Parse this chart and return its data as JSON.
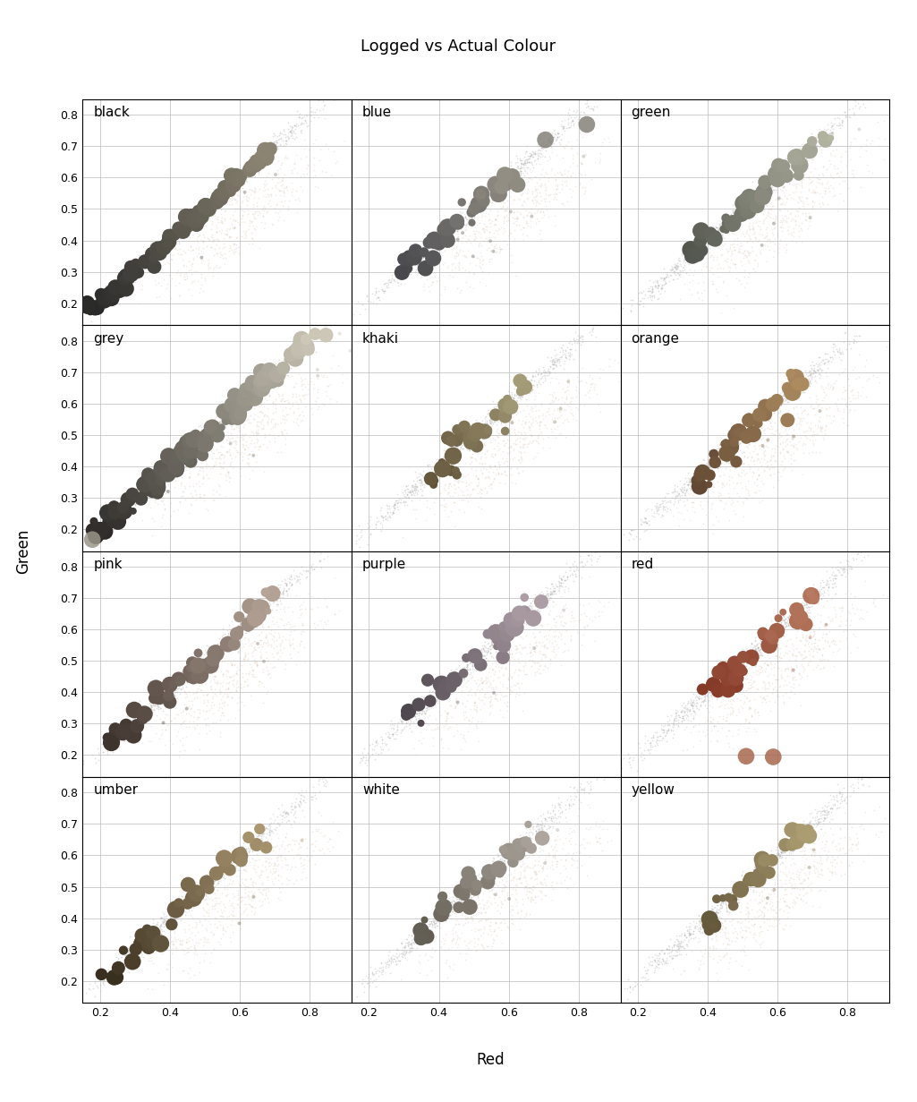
{
  "title": "Logged vs Actual Colour",
  "xlabel": "Red",
  "ylabel": "Green",
  "labels": [
    "black",
    "blue",
    "green",
    "grey",
    "khaki",
    "orange",
    "pink",
    "purple",
    "red",
    "umber",
    "white",
    "yellow"
  ],
  "xlim": [
    0.15,
    0.92
  ],
  "ylim": [
    0.13,
    0.85
  ],
  "xticks": [
    0.2,
    0.4,
    0.6,
    0.8
  ],
  "yticks": [
    0.2,
    0.3,
    0.4,
    0.5,
    0.6,
    0.7,
    0.8
  ],
  "background_color": "#ffffff",
  "label_colors": {
    "black": "#222222",
    "blue": "#7a7a88",
    "green": "#7a887a",
    "grey": "#888888",
    "khaki": "#b09966",
    "orange": "#c07848",
    "pink": "#cc8877",
    "purple": "#9977aa",
    "red": "#993322",
    "umber": "#8a6644",
    "white": "#ccbbaa",
    "yellow": "#bba055"
  },
  "nrows": 4,
  "ncols": 3
}
